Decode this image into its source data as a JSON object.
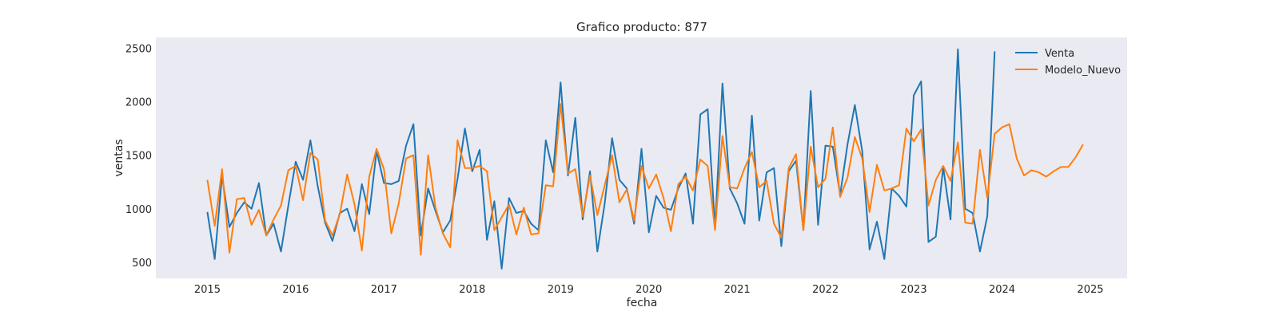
{
  "chart_data": {
    "type": "line",
    "title": "Grafico producto: 877",
    "xlabel": "fecha",
    "ylabel": "ventas",
    "xlim": [
      "2014-06",
      "2025-06"
    ],
    "ylim": [
      350,
      2600
    ],
    "x_ticks": [
      "2015",
      "2016",
      "2017",
      "2018",
      "2019",
      "2020",
      "2021",
      "2022",
      "2023",
      "2024",
      "2025"
    ],
    "y_ticks": [
      500,
      1000,
      1500,
      2000,
      2500
    ],
    "grid": false,
    "legend_position": "top-right",
    "background": "#eaeaf2",
    "series": [
      {
        "name": "Venta",
        "color": "#1f77b4",
        "start": "2015-01",
        "values": [
          970,
          530,
          1310,
          830,
          960,
          1060,
          1000,
          1240,
          750,
          860,
          600,
          1030,
          1440,
          1270,
          1640,
          1210,
          870,
          700,
          960,
          1000,
          790,
          1230,
          950,
          1540,
          1240,
          1230,
          1260,
          1590,
          1790,
          750,
          1190,
          980,
          780,
          890,
          1280,
          1750,
          1350,
          1550,
          710,
          1070,
          440,
          1100,
          960,
          980,
          860,
          800,
          1640,
          1340,
          2180,
          1310,
          1850,
          900,
          1350,
          600,
          1050,
          1660,
          1270,
          1190,
          860,
          1560,
          780,
          1120,
          1010,
          990,
          1190,
          1330,
          860,
          1880,
          1930,
          820,
          2170,
          1190,
          1050,
          860,
          1870,
          890,
          1340,
          1380,
          650,
          1350,
          1450,
          800,
          2100,
          850,
          1590,
          1580,
          1130,
          1600,
          1970,
          1540,
          620,
          880,
          530,
          1190,
          1120,
          1020,
          2060,
          2190,
          690,
          740,
          1390,
          900,
          2490,
          1000,
          960,
          600,
          930,
          2470
        ]
      },
      {
        "name": "Modelo_Nuevo",
        "color": "#ff7f0e",
        "start": "2015-01",
        "values": [
          1270,
          840,
          1370,
          590,
          1090,
          1100,
          850,
          990,
          750,
          900,
          1030,
          1360,
          1400,
          1080,
          1520,
          1460,
          890,
          750,
          950,
          1320,
          1040,
          610,
          1300,
          1560,
          1370,
          770,
          1050,
          1470,
          1500,
          570,
          1500,
          1010,
          770,
          640,
          1640,
          1380,
          1380,
          1400,
          1350,
          800,
          920,
          1040,
          760,
          1010,
          760,
          770,
          1220,
          1210,
          1980,
          1330,
          1370,
          930,
          1310,
          940,
          1220,
          1500,
          1060,
          1180,
          890,
          1400,
          1190,
          1320,
          1100,
          790,
          1230,
          1300,
          1170,
          1460,
          1400,
          800,
          1680,
          1200,
          1190,
          1380,
          1530,
          1200,
          1260,
          860,
          730,
          1380,
          1510,
          800,
          1580,
          1200,
          1280,
          1760,
          1110,
          1290,
          1670,
          1470,
          970,
          1410,
          1170,
          1190,
          1220,
          1750,
          1630,
          1740,
          1030,
          1270,
          1400,
          1260,
          1620,
          870,
          860,
          1550,
          1100,
          1700,
          1760,
          1790,
          1470,
          1310,
          1360,
          1340,
          1300,
          1350,
          1390,
          1390,
          1480,
          1600
        ]
      }
    ]
  }
}
